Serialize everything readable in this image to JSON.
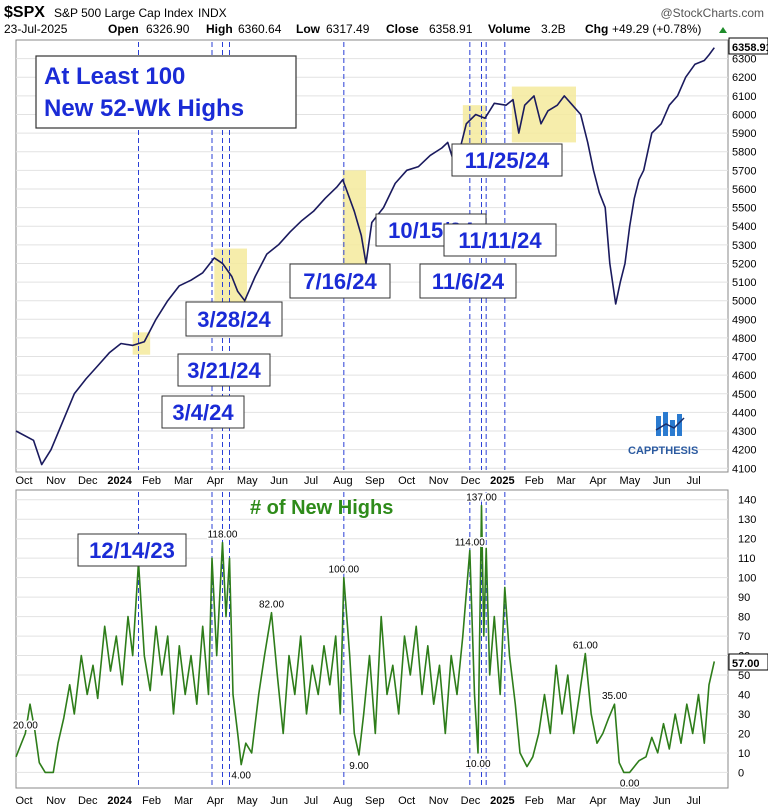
{
  "header": {
    "symbol": "$SPX",
    "name": "S&P 500 Large Cap Index",
    "exchange": "INDX",
    "watermark": "@StockCharts.com",
    "date": "23-Jul-2025",
    "open_label": "Open",
    "open": "6326.90",
    "high_label": "High",
    "high": "6360.64",
    "low_label": "Low",
    "low": "6317.49",
    "close_label": "Close",
    "close": "6358.91",
    "volume_label": "Volume",
    "volume": "3.2B",
    "chg_label": "Chg",
    "chg": "+49.29 (+0.78%)"
  },
  "annotations": {
    "main_box": [
      "At Least 100",
      "New 52-Wk Highs"
    ],
    "panel_title": "# of New Highs",
    "logo": "CAPPTHESIS"
  },
  "colors": {
    "price_line": "#1a1a5e",
    "highs_line": "#2e7d1a",
    "highlight": "#f5ea9c",
    "date_label": "#1a2bd6",
    "grid": "#e2e2e2",
    "vline": "#2a3fd6"
  },
  "chart_data": [
    {
      "type": "line",
      "title": "$SPX S&P 500 Large Cap Index INDX",
      "ylim": [
        4080,
        6400
      ],
      "y_ticks": [
        4100,
        4200,
        4300,
        4400,
        4500,
        4600,
        4700,
        4800,
        4900,
        5000,
        5100,
        5200,
        5300,
        5400,
        5500,
        5600,
        5700,
        5800,
        5900,
        6000,
        6100,
        6200,
        6300
      ],
      "x_ticks": [
        "Oct",
        "Nov",
        "Dec",
        "2024",
        "Feb",
        "Mar",
        "Apr",
        "May",
        "Jun",
        "Jul",
        "Aug",
        "Sep",
        "Oct",
        "Nov",
        "Dec",
        "2025",
        "Feb",
        "Mar",
        "Apr",
        "May",
        "Jun",
        "Jul"
      ],
      "last_value_label": "6358.91",
      "series": [
        {
          "values": [
            [
              0,
              4300
            ],
            [
              1.5,
              4250
            ],
            [
              2.2,
              4120
            ],
            [
              3,
              4200
            ],
            [
              4,
              4350
            ],
            [
              5,
              4500
            ],
            [
              6,
              4580
            ],
            [
              7,
              4650
            ],
            [
              8,
              4720
            ],
            [
              9,
              4770
            ],
            [
              10,
              4760
            ],
            [
              11,
              4780
            ],
            [
              12,
              4900
            ],
            [
              13,
              5000
            ],
            [
              14,
              5080
            ],
            [
              15,
              5110
            ],
            [
              16,
              5150
            ],
            [
              17,
              5230
            ],
            [
              17.7,
              5200
            ],
            [
              18.5,
              5130
            ],
            [
              19,
              5050
            ],
            [
              19.6,
              5000
            ],
            [
              20.5,
              5130
            ],
            [
              21.5,
              5250
            ],
            [
              22.5,
              5300
            ],
            [
              23.5,
              5370
            ],
            [
              24.5,
              5430
            ],
            [
              25.5,
              5480
            ],
            [
              26.5,
              5550
            ],
            [
              27.5,
              5610
            ],
            [
              28,
              5650
            ],
            [
              28.3,
              5600
            ],
            [
              29,
              5480
            ],
            [
              29.6,
              5350
            ],
            [
              30,
              5200
            ],
            [
              30.5,
              5420
            ],
            [
              31.5,
              5500
            ],
            [
              32.5,
              5630
            ],
            [
              33.5,
              5700
            ],
            [
              34.5,
              5720
            ],
            [
              35.5,
              5780
            ],
            [
              36.5,
              5820
            ],
            [
              37,
              5850
            ],
            [
              37.5,
              5750
            ],
            [
              38,
              5800
            ],
            [
              38.6,
              5950
            ],
            [
              39.4,
              6000
            ],
            [
              40.2,
              5980
            ],
            [
              41,
              6060
            ],
            [
              42,
              6050
            ],
            [
              42.6,
              6080
            ],
            [
              43.1,
              5900
            ],
            [
              43.6,
              6050
            ],
            [
              44.4,
              6100
            ],
            [
              45,
              5950
            ],
            [
              45.6,
              6020
            ],
            [
              46.4,
              6050
            ],
            [
              47,
              6100
            ],
            [
              47.7,
              6050
            ],
            [
              48.4,
              6000
            ],
            [
              49,
              5850
            ],
            [
              49.5,
              5700
            ],
            [
              50,
              5580
            ],
            [
              50.5,
              5500
            ],
            [
              50.9,
              5200
            ],
            [
              51.4,
              4982
            ],
            [
              51.8,
              5100
            ],
            [
              52.2,
              5200
            ],
            [
              52.6,
              5400
            ],
            [
              53,
              5550
            ],
            [
              53.4,
              5650
            ],
            [
              53.8,
              5700
            ],
            [
              54.5,
              5900
            ],
            [
              55.3,
              5950
            ],
            [
              56,
              6050
            ],
            [
              56.7,
              6100
            ],
            [
              57.4,
              6200
            ],
            [
              58.2,
              6270
            ],
            [
              59,
              6290
            ],
            [
              59.4,
              6320
            ],
            [
              59.85,
              6358.91
            ]
          ]
        }
      ],
      "highlight_ranges": [
        [
          10,
          11.5
        ],
        [
          17,
          19.8
        ],
        [
          28,
          30
        ],
        [
          38.3,
          40.3
        ],
        [
          42.5,
          48
        ]
      ],
      "vertical_markers": [
        {
          "x": 10.5,
          "label": "12/14/23"
        },
        {
          "x": 16.8,
          "label": "3/4/24"
        },
        {
          "x": 17.7,
          "label": "3/21/24"
        },
        {
          "x": 18.3,
          "label": "3/28/24"
        },
        {
          "x": 28.1,
          "label": "7/16/24"
        },
        {
          "x": 38.9,
          "label": "10/15/24"
        },
        {
          "x": 39.9,
          "label": "11/6/24"
        },
        {
          "x": 40.3,
          "label": "11/11/24"
        },
        {
          "x": 41.9,
          "label": "11/25/24"
        }
      ]
    },
    {
      "type": "line",
      "title": "# of New Highs",
      "ylim": [
        -8,
        145
      ],
      "y_ticks": [
        0,
        10,
        20,
        30,
        40,
        50,
        60,
        70,
        80,
        90,
        100,
        110,
        120,
        130,
        140
      ],
      "x_ticks": [
        "Oct",
        "Nov",
        "Dec",
        "2024",
        "Feb",
        "Mar",
        "Apr",
        "May",
        "Jun",
        "Jul",
        "Aug",
        "Sep",
        "Oct",
        "Nov",
        "Dec",
        "2025",
        "Feb",
        "Mar",
        "Apr",
        "May",
        "Jun",
        "Jul"
      ],
      "last_value_label": "57.00",
      "series": [
        {
          "values": [
            [
              0,
              8
            ],
            [
              0.8,
              20
            ],
            [
              1.2,
              35
            ],
            [
              1.6,
              22
            ],
            [
              2,
              5
            ],
            [
              2.5,
              0
            ],
            [
              3.2,
              0
            ],
            [
              3.6,
              15
            ],
            [
              4.1,
              28
            ],
            [
              4.6,
              45
            ],
            [
              5,
              30
            ],
            [
              5.6,
              60
            ],
            [
              6.1,
              40
            ],
            [
              6.6,
              55
            ],
            [
              7,
              38
            ],
            [
              7.6,
              75
            ],
            [
              8.1,
              52
            ],
            [
              8.6,
              70
            ],
            [
              9.1,
              45
            ],
            [
              9.6,
              80
            ],
            [
              10,
              60
            ],
            [
              10.5,
              108
            ],
            [
              11,
              60
            ],
            [
              11.5,
              42
            ],
            [
              12,
              75
            ],
            [
              12.5,
              50
            ],
            [
              13,
              70
            ],
            [
              13.5,
              30
            ],
            [
              14,
              65
            ],
            [
              14.5,
              40
            ],
            [
              15,
              60
            ],
            [
              15.5,
              35
            ],
            [
              16,
              75
            ],
            [
              16.5,
              40
            ],
            [
              16.8,
              110
            ],
            [
              17.2,
              60
            ],
            [
              17.7,
              118
            ],
            [
              18,
              80
            ],
            [
              18.3,
              110
            ],
            [
              18.6,
              40
            ],
            [
              19,
              20
            ],
            [
              19.3,
              4
            ],
            [
              19.7,
              15
            ],
            [
              20.2,
              10
            ],
            [
              20.8,
              40
            ],
            [
              21.3,
              60
            ],
            [
              21.9,
              82
            ],
            [
              22.4,
              50
            ],
            [
              22.9,
              20
            ],
            [
              23.4,
              60
            ],
            [
              23.9,
              40
            ],
            [
              24.4,
              70
            ],
            [
              24.9,
              30
            ],
            [
              25.4,
              55
            ],
            [
              25.9,
              40
            ],
            [
              26.4,
              65
            ],
            [
              26.9,
              45
            ],
            [
              27.4,
              70
            ],
            [
              27.8,
              30
            ],
            [
              28.1,
              100
            ],
            [
              28.6,
              60
            ],
            [
              29,
              20
            ],
            [
              29.4,
              9
            ],
            [
              29.8,
              30
            ],
            [
              30.3,
              60
            ],
            [
              30.8,
              20
            ],
            [
              31.3,
              80
            ],
            [
              31.8,
              40
            ],
            [
              32.3,
              55
            ],
            [
              32.8,
              30
            ],
            [
              33.3,
              70
            ],
            [
              33.8,
              50
            ],
            [
              34.3,
              75
            ],
            [
              34.8,
              40
            ],
            [
              35.3,
              65
            ],
            [
              35.8,
              35
            ],
            [
              36.3,
              55
            ],
            [
              36.8,
              20
            ],
            [
              37.3,
              60
            ],
            [
              37.8,
              40
            ],
            [
              38.3,
              70
            ],
            [
              38.9,
              114
            ],
            [
              39.3,
              40
            ],
            [
              39.6,
              10
            ],
            [
              39.9,
              137
            ],
            [
              40.1,
              70
            ],
            [
              40.3,
              115
            ],
            [
              40.6,
              50
            ],
            [
              41,
              80
            ],
            [
              41.5,
              40
            ],
            [
              41.9,
              95
            ],
            [
              42.3,
              60
            ],
            [
              42.8,
              35
            ],
            [
              43.2,
              10
            ],
            [
              43.8,
              3
            ],
            [
              44.3,
              8
            ],
            [
              44.8,
              20
            ],
            [
              45.3,
              40
            ],
            [
              45.8,
              20
            ],
            [
              46.3,
              55
            ],
            [
              46.8,
              30
            ],
            [
              47.3,
              50
            ],
            [
              47.8,
              20
            ],
            [
              48.3,
              40
            ],
            [
              48.8,
              61
            ],
            [
              49.3,
              30
            ],
            [
              49.8,
              15
            ],
            [
              50.3,
              20
            ],
            [
              50.8,
              28
            ],
            [
              51.3,
              35
            ],
            [
              51.7,
              5
            ],
            [
              52.1,
              0
            ],
            [
              52.6,
              0
            ],
            [
              53,
              3
            ],
            [
              53.4,
              6
            ],
            [
              54,
              8
            ],
            [
              54.5,
              18
            ],
            [
              55,
              10
            ],
            [
              55.5,
              25
            ],
            [
              56,
              12
            ],
            [
              56.5,
              30
            ],
            [
              57,
              15
            ],
            [
              57.5,
              35
            ],
            [
              58,
              20
            ],
            [
              58.5,
              40
            ],
            [
              59,
              15
            ],
            [
              59.4,
              45
            ],
            [
              59.85,
              57
            ]
          ]
        }
      ],
      "point_labels": [
        {
          "x": 0.8,
          "y": 20,
          "label": "20.00"
        },
        {
          "x": 17.7,
          "y": 118,
          "label": "118.00"
        },
        {
          "x": 19.3,
          "y": 4,
          "label": "4.00"
        },
        {
          "x": 21.9,
          "y": 82,
          "label": "82.00"
        },
        {
          "x": 28.1,
          "y": 100,
          "label": "100.00"
        },
        {
          "x": 29.4,
          "y": 9,
          "label": "9.00"
        },
        {
          "x": 38.9,
          "y": 114,
          "label": "114.00"
        },
        {
          "x": 39.6,
          "y": 10,
          "label": "10.00"
        },
        {
          "x": 39.9,
          "y": 137,
          "label": "137.00"
        },
        {
          "x": 48.8,
          "y": 61,
          "label": "61.00"
        },
        {
          "x": 51.3,
          "y": 35,
          "label": "35.00"
        },
        {
          "x": 52.6,
          "y": 0,
          "label": "0.00"
        }
      ]
    }
  ]
}
